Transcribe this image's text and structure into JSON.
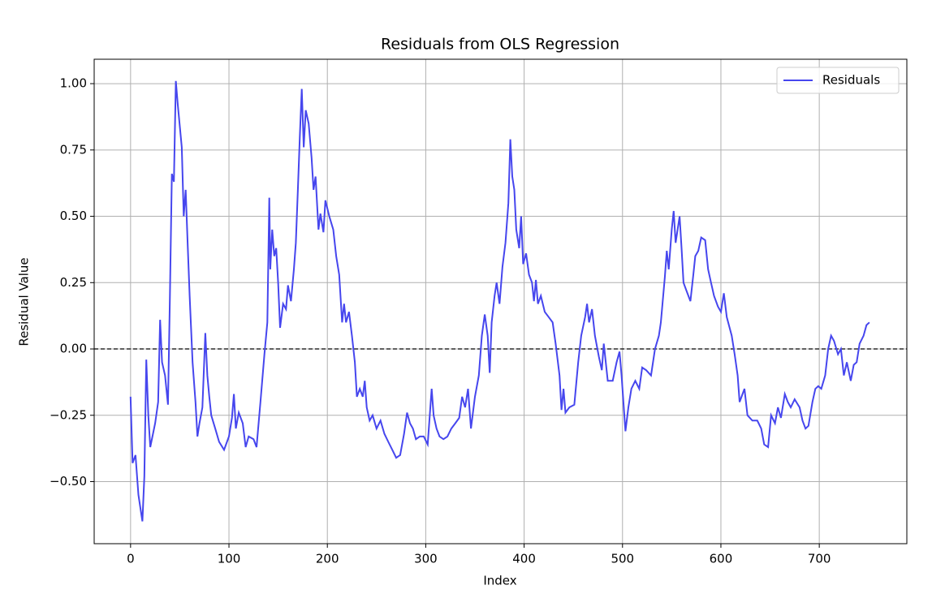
{
  "chart_data": {
    "type": "line",
    "title": "Residuals from OLS Regression",
    "x_label": "Index",
    "y_label": "Residual Value",
    "series": [
      {
        "name": "Residuals",
        "color": "#4646ee",
        "x": [
          0,
          2,
          5,
          8,
          12,
          14,
          16,
          18,
          20,
          25,
          28,
          30,
          32,
          35,
          38,
          40,
          42,
          44,
          46,
          48,
          52,
          54,
          56,
          58,
          60,
          63,
          66,
          68,
          70,
          73,
          76,
          78,
          80,
          82,
          86,
          90,
          95,
          100,
          103,
          105,
          107,
          110,
          114,
          117,
          120,
          125,
          128,
          132,
          136,
          139,
          141,
          142,
          144,
          146,
          148,
          150,
          152,
          155,
          158,
          160,
          163,
          166,
          168,
          170,
          172,
          174,
          176,
          178,
          181,
          184,
          186,
          188,
          191,
          193,
          196,
          198,
          202,
          206,
          209,
          212,
          215,
          217,
          219,
          222,
          225,
          228,
          230,
          233,
          236,
          238,
          240,
          243,
          246,
          250,
          254,
          258,
          262,
          266,
          270,
          274,
          278,
          281,
          284,
          287,
          290,
          294,
          298,
          302,
          306,
          308,
          311,
          314,
          318,
          322,
          326,
          330,
          334,
          337,
          340,
          343,
          346,
          350,
          354,
          357,
          360,
          363,
          365,
          367,
          370,
          372,
          375,
          378,
          381,
          384,
          386,
          388,
          390,
          392,
          395,
          397,
          399,
          402,
          405,
          408,
          410,
          412,
          414,
          417,
          421,
          425,
          429,
          432,
          436,
          438,
          440,
          442,
          446,
          451,
          455,
          458,
          462,
          464,
          466,
          469,
          472,
          476,
          479,
          481,
          485,
          490,
          494,
          497,
          499,
          503,
          506,
          509,
          513,
          517,
          520,
          524,
          529,
          533,
          537,
          539,
          543,
          545,
          547,
          550,
          552,
          554,
          558,
          560,
          562,
          565,
          569,
          572,
          574,
          577,
          580,
          584,
          587,
          590,
          593,
          597,
          600,
          603,
          606,
          611,
          614,
          617,
          619,
          624,
          627,
          632,
          637,
          641,
          644,
          648,
          651,
          655,
          658,
          661,
          665,
          668,
          671,
          675,
          680,
          683,
          686,
          689,
          693,
          696,
          699,
          702,
          706,
          709,
          712,
          715,
          719,
          722,
          725,
          728,
          732,
          735,
          738,
          741,
          745,
          748,
          751
        ],
        "values": [
          -0.18,
          -0.43,
          -0.4,
          -0.55,
          -0.65,
          -0.48,
          -0.04,
          -0.25,
          -0.37,
          -0.28,
          -0.2,
          0.11,
          -0.05,
          -0.1,
          -0.21,
          0.2,
          0.66,
          0.63,
          1.01,
          0.92,
          0.76,
          0.5,
          0.6,
          0.4,
          0.2,
          -0.05,
          -0.2,
          -0.33,
          -0.28,
          -0.22,
          0.06,
          -0.1,
          -0.18,
          -0.25,
          -0.3,
          -0.35,
          -0.38,
          -0.33,
          -0.26,
          -0.17,
          -0.3,
          -0.24,
          -0.28,
          -0.37,
          -0.33,
          -0.34,
          -0.37,
          -0.2,
          -0.02,
          0.1,
          0.57,
          0.3,
          0.45,
          0.35,
          0.38,
          0.25,
          0.08,
          0.17,
          0.15,
          0.24,
          0.18,
          0.3,
          0.4,
          0.6,
          0.8,
          0.98,
          0.76,
          0.9,
          0.85,
          0.72,
          0.6,
          0.65,
          0.45,
          0.51,
          0.44,
          0.56,
          0.5,
          0.45,
          0.35,
          0.28,
          0.1,
          0.17,
          0.1,
          0.14,
          0.05,
          -0.05,
          -0.18,
          -0.15,
          -0.18,
          -0.12,
          -0.22,
          -0.27,
          -0.25,
          -0.3,
          -0.27,
          -0.32,
          -0.35,
          -0.38,
          -0.41,
          -0.4,
          -0.32,
          -0.24,
          -0.28,
          -0.3,
          -0.34,
          -0.33,
          -0.33,
          -0.36,
          -0.15,
          -0.25,
          -0.3,
          -0.33,
          -0.34,
          -0.33,
          -0.3,
          -0.28,
          -0.26,
          -0.18,
          -0.22,
          -0.15,
          -0.3,
          -0.18,
          -0.1,
          0.05,
          0.13,
          0.05,
          -0.09,
          0.1,
          0.2,
          0.25,
          0.17,
          0.31,
          0.4,
          0.55,
          0.79,
          0.65,
          0.6,
          0.45,
          0.38,
          0.5,
          0.32,
          0.36,
          0.28,
          0.25,
          0.18,
          0.26,
          0.17,
          0.2,
          0.14,
          0.12,
          0.1,
          0.02,
          -0.1,
          -0.23,
          -0.15,
          -0.24,
          -0.22,
          -0.21,
          -0.05,
          0.05,
          0.12,
          0.17,
          0.1,
          0.15,
          0.05,
          -0.03,
          -0.08,
          0.02,
          -0.12,
          -0.12,
          -0.05,
          -0.01,
          -0.1,
          -0.31,
          -0.22,
          -0.15,
          -0.12,
          -0.15,
          -0.07,
          -0.08,
          -0.1,
          0.0,
          0.05,
          0.1,
          0.27,
          0.37,
          0.3,
          0.45,
          0.52,
          0.4,
          0.5,
          0.38,
          0.25,
          0.22,
          0.18,
          0.28,
          0.35,
          0.37,
          0.42,
          0.41,
          0.3,
          0.25,
          0.2,
          0.16,
          0.14,
          0.21,
          0.12,
          0.05,
          -0.02,
          -0.1,
          -0.2,
          -0.15,
          -0.25,
          -0.27,
          -0.27,
          -0.3,
          -0.36,
          -0.37,
          -0.25,
          -0.28,
          -0.22,
          -0.26,
          -0.17,
          -0.2,
          -0.22,
          -0.19,
          -0.22,
          -0.27,
          -0.3,
          -0.29,
          -0.2,
          -0.15,
          -0.14,
          -0.15,
          -0.1,
          0.0,
          0.05,
          0.03,
          -0.02,
          0.0,
          -0.1,
          -0.05,
          -0.12,
          -0.06,
          -0.05,
          0.02,
          0.05,
          0.09,
          0.1
        ]
      }
    ],
    "xlim": [
      -37,
      789
    ],
    "ylim": [
      -0.734,
      1.092
    ],
    "xticks": [
      0,
      100,
      200,
      300,
      400,
      500,
      600,
      700
    ],
    "yticks": [
      {
        "value": -0.5,
        "label": "−0.50"
      },
      {
        "value": -0.25,
        "label": "−0.25"
      },
      {
        "value": 0,
        "label": "0.00"
      },
      {
        "value": 0.25,
        "label": "0.25"
      },
      {
        "value": 0.5,
        "label": "0.50"
      },
      {
        "value": 0.75,
        "label": "0.75"
      },
      {
        "value": 1,
        "label": "1.00"
      }
    ],
    "hline": 0,
    "grid": true,
    "legend": "upper right"
  }
}
